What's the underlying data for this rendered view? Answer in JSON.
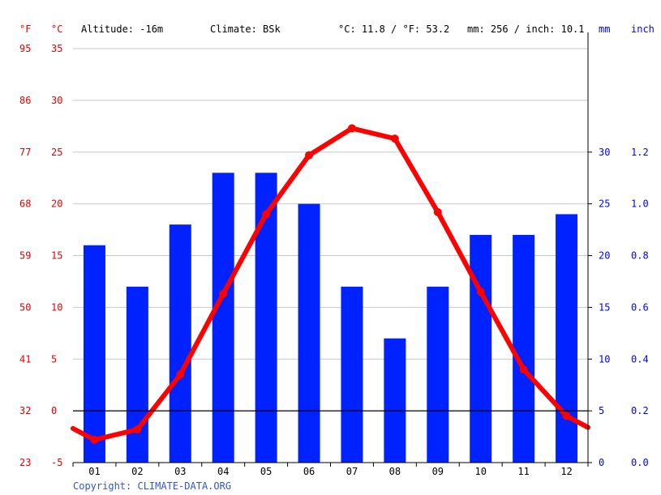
{
  "header": {
    "unit_f": "°F",
    "unit_c": "°C",
    "altitude": "Altitude: -16m",
    "climate": "Climate: BSk",
    "avg_temp": "°C: 11.8 / °F: 53.2",
    "precip_total": "mm: 256 / inch: 10.1",
    "unit_mm": "mm",
    "unit_inch": "inch"
  },
  "footer": {
    "copyright": "Copyright: CLIMATE-DATA.ORG"
  },
  "colors": {
    "temperature": "#ff0000",
    "precipitation": "#0022ff",
    "axis_left": "#e60000",
    "axis_right": "#0000ff"
  },
  "chart_data": {
    "type": "bar",
    "categories": [
      "01",
      "02",
      "03",
      "04",
      "05",
      "06",
      "07",
      "08",
      "09",
      "10",
      "11",
      "12"
    ],
    "series": [
      {
        "type": "bar",
        "axis": "right",
        "values": [
          21,
          17,
          23,
          28,
          28,
          25,
          17,
          12,
          17,
          22,
          22,
          24
        ]
      },
      {
        "type": "line",
        "axis": "left",
        "values": [
          -2.8,
          -1.8,
          3.5,
          11.3,
          19.0,
          24.7,
          27.3,
          26.3,
          19.2,
          11.5,
          4.0,
          -0.5
        ]
      }
    ],
    "edge_values": {
      "left": -1.7,
      "right": -1.6
    },
    "y_left_celsius": {
      "ylim": [
        -5,
        35
      ],
      "ticks": [
        "-5",
        "0",
        "5",
        "10",
        "15",
        "20",
        "25",
        "30",
        "35"
      ]
    },
    "y_left_fahrenheit": {
      "ticks": [
        "23",
        "32",
        "41",
        "50",
        "59",
        "68",
        "77",
        "86",
        "95"
      ]
    },
    "y_right_mm": {
      "ylim": [
        0,
        40
      ],
      "ticks": [
        "0",
        "5",
        "10",
        "15",
        "20",
        "25",
        "30"
      ]
    },
    "y_right_inch": {
      "ticks": [
        "0.0",
        "0.2",
        "0.4",
        "0.6",
        "0.8",
        "1.0",
        "1.2"
      ]
    },
    "grid": true
  }
}
